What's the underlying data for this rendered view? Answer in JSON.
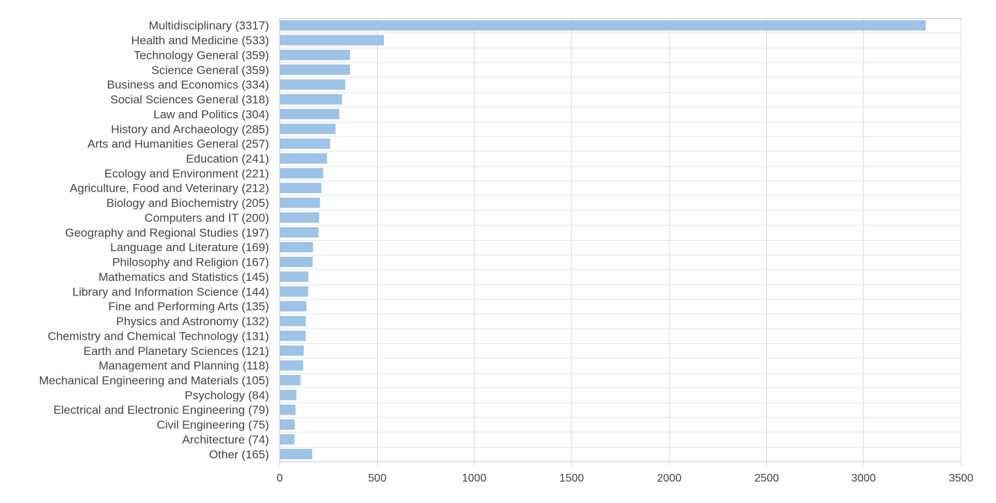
{
  "chart_data": {
    "type": "bar",
    "orientation": "horizontal",
    "title": "",
    "xlabel": "",
    "ylabel": "",
    "xlim": [
      0,
      3500
    ],
    "x_ticks": [
      "0",
      "500",
      "1000",
      "1500",
      "2000",
      "2500",
      "3000",
      "3500"
    ],
    "x_tick_values": [
      0,
      500,
      1000,
      1500,
      2000,
      2500,
      3000,
      3500
    ],
    "grid": true,
    "legend": "none",
    "bar_color": "#9dc3e6",
    "categories": [
      "Multidisciplinary (3317)",
      "Health and Medicine (533)",
      "Technology General (359)",
      "Science General (359)",
      "Business and Economics (334)",
      "Social Sciences General (318)",
      "Law and Politics (304)",
      "History and Archaeology (285)",
      "Arts and Humanities General (257)",
      "Education (241)",
      "Ecology and Environment (221)",
      "Agriculture, Food and Veterinary (212)",
      "Biology and Biochemistry (205)",
      "Computers and IT (200)",
      "Geography and Regional Studies (197)",
      "Language and Literature (169)",
      "Philosophy and Religion (167)",
      "Mathematics and Statistics (145)",
      "Library and Information Science (144)",
      "Fine and Performing Arts (135)",
      "Physics and Astronomy (132)",
      "Chemistry and Chemical Technology (131)",
      "Earth and Planetary Sciences (121)",
      "Management and Planning (118)",
      "Mechanical Engineering and Materials (105)",
      "Psychology (84)",
      "Electrical and Electronic Engineering (79)",
      "Civil Engineering (75)",
      "Architecture (74)",
      "Other (165)"
    ],
    "values": [
      3317,
      533,
      359,
      359,
      334,
      318,
      304,
      285,
      257,
      241,
      221,
      212,
      205,
      200,
      197,
      169,
      167,
      145,
      144,
      135,
      132,
      131,
      121,
      118,
      105,
      84,
      79,
      75,
      74,
      165
    ]
  }
}
